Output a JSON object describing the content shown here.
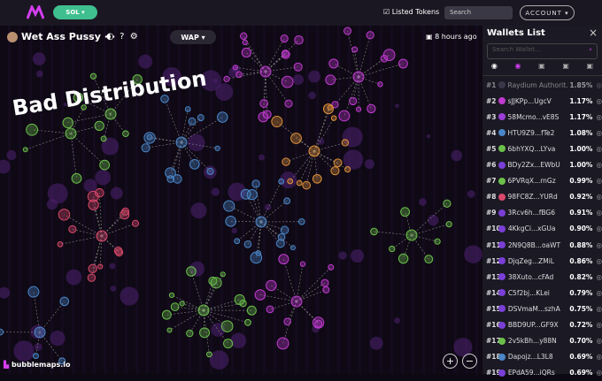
{
  "header": {
    "chain": "SOL",
    "listed": "Listed Tokens",
    "search": "Search",
    "account": "ACCOUNT"
  },
  "token": {
    "name": "Wet Ass Pussy",
    "menu": "···",
    "symbol": "WAP",
    "time": "8 hours ago"
  },
  "annotation": "Bad Distribution",
  "brand": "bubblemaps.io",
  "sidebar": {
    "title": "Wallets List",
    "search": "Search Wallet...",
    "rows": [
      {
        "rank": "#1",
        "name": "Raydium Authorit...",
        "pct": "1.85%",
        "color": "#55516a"
      },
      {
        "rank": "#2",
        "name": "sJJKPp...UgcV",
        "pct": "1.17%",
        "color": "#c03ad0"
      },
      {
        "rank": "#3",
        "name": "58Mcmo...vE8S",
        "pct": "1.17%",
        "color": "#9b3fd6"
      },
      {
        "rank": "#4",
        "name": "HTU9Z9...fTe2",
        "pct": "1.08%",
        "color": "#4a86c8"
      },
      {
        "rank": "#5",
        "name": "6bhYXQ...LYva",
        "pct": "1.00%",
        "color": "#6bbf4a"
      },
      {
        "rank": "#6",
        "name": "BDy2Zx...EWbU",
        "pct": "1.00%",
        "color": "#7a3fd6"
      },
      {
        "rank": "#7",
        "name": "6PVRqX...rnGz",
        "pct": "0.99%",
        "color": "#6bbf4a"
      },
      {
        "rank": "#8",
        "name": "98FC8Z...YURd",
        "pct": "0.92%",
        "color": "#d9496b"
      },
      {
        "rank": "#9",
        "name": "3Rcv6h...fBG6",
        "pct": "0.91%",
        "color": "#7a3fd6"
      },
      {
        "rank": "#10",
        "name": "4KkgCi...xGUa",
        "pct": "0.90%",
        "color": "#7a3fd6"
      },
      {
        "rank": "#11",
        "name": "2N9Q8B...oaWT",
        "pct": "0.88%",
        "color": "#7a3fd6"
      },
      {
        "rank": "#12",
        "name": "DjqZeg...ZMiL",
        "pct": "0.86%",
        "color": "#7a3fd6"
      },
      {
        "rank": "#13",
        "name": "38Xuto...cFAd",
        "pct": "0.82%",
        "color": "#7a3fd6"
      },
      {
        "rank": "#14",
        "name": "C5f2bj...KLei",
        "pct": "0.79%",
        "color": "#7a3fd6"
      },
      {
        "rank": "#15",
        "name": "DSVmaM...szhA",
        "pct": "0.75%",
        "color": "#7a3fd6"
      },
      {
        "rank": "#16",
        "name": "BBD9UP...GF9X",
        "pct": "0.72%",
        "color": "#7a3fd6"
      },
      {
        "rank": "#17",
        "name": "2v5kBh...y88N",
        "pct": "0.70%",
        "color": "#6bbf4a"
      },
      {
        "rank": "#18",
        "name": "Dapojz...L3L8",
        "pct": "0.69%",
        "color": "#4a86c8"
      },
      {
        "rank": "#19",
        "name": "EPdA59...iQRs",
        "pct": "0.69%",
        "color": "#7a3fd6"
      }
    ]
  }
}
